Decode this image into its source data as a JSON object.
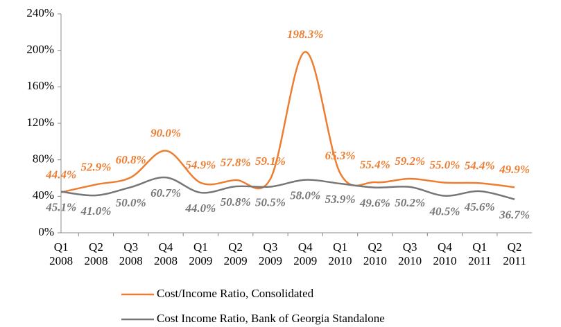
{
  "chart_data": {
    "type": "line",
    "categories": [
      "Q1 2008",
      "Q2 2008",
      "Q3 2008",
      "Q4 2008",
      "Q1 2009",
      "Q2 2009",
      "Q3 2009",
      "Q4 2009",
      "Q1 2010",
      "Q2 2010",
      "Q3 2010",
      "Q4 2010",
      "Q1 2011",
      "Q2 2011"
    ],
    "series": [
      {
        "name": "Cost/Income Ratio, Consolidated",
        "color": "#ed7d31",
        "values": [
          44.4,
          52.9,
          60.8,
          90.0,
          54.9,
          57.8,
          59.1,
          198.3,
          65.3,
          55.4,
          59.2,
          55.0,
          54.4,
          49.9
        ],
        "value_labels": [
          "44.4%",
          "52.9%",
          "60.8%",
          "90.0%",
          "54.9%",
          "57.8%",
          "59.1%",
          "198.3%",
          "65.3%",
          "55.4%",
          "59.2%",
          "55.0%",
          "54.4%",
          "49.9%"
        ]
      },
      {
        "name": "Cost Income Ratio, Bank of Georgia Standalone",
        "color": "#767676",
        "values": [
          45.1,
          41.0,
          50.0,
          60.7,
          44.0,
          50.8,
          50.5,
          58.0,
          53.9,
          49.6,
          50.2,
          40.5,
          45.6,
          36.7
        ],
        "value_labels": [
          "45.1%",
          "41.0%",
          "50.0%",
          "60.7%",
          "44.0%",
          "50.8%",
          "50.5%",
          "58.0%",
          "53.9%",
          "49.6%",
          "50.2%",
          "40.5%",
          "45.6%",
          "36.7%"
        ]
      }
    ],
    "ylim": [
      0,
      240
    ],
    "yticks": [
      {
        "value": 0,
        "label": "0%"
      },
      {
        "value": 40,
        "label": "40%"
      },
      {
        "value": 80,
        "label": "80%"
      },
      {
        "value": 120,
        "label": "120%"
      },
      {
        "value": 160,
        "label": "160%"
      },
      {
        "value": 200,
        "label": "200%"
      },
      {
        "value": 240,
        "label": "240%"
      }
    ]
  }
}
